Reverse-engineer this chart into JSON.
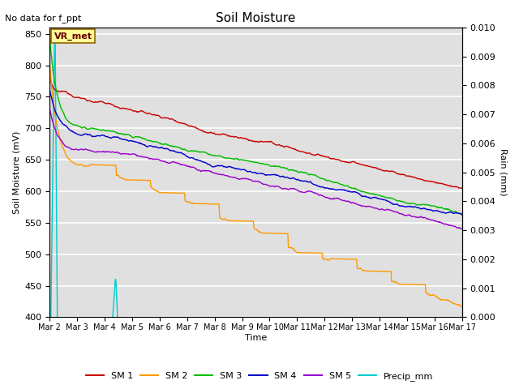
{
  "title": "Soil Moisture",
  "top_left_text": "No data for f_ppt",
  "xlabel": "Time",
  "ylabel_left": "Soil Moisture (mV)",
  "ylabel_right": "Rain (mm)",
  "ylim_left": [
    400,
    860
  ],
  "ylim_right": [
    0.0,
    0.01
  ],
  "background_color": "#ffffff",
  "plot_bg_color": "#e0e0e0",
  "grid_color": "#ffffff",
  "title_fontsize": 11,
  "sm1_color": "#cc0000",
  "sm2_color": "#ff9900",
  "sm3_color": "#00bb00",
  "sm4_color": "#0000cc",
  "sm5_color": "#9900cc",
  "precip_color": "#00cccc",
  "x_tick_labels": [
    "Mar 2",
    "Mar 3",
    "Mar 4",
    "Mar 5",
    "Mar 6",
    "Mar 7",
    "Mar 8",
    "Mar 9",
    "Mar 10",
    "Mar 11",
    "Mar 12",
    "Mar 13",
    "Mar 14",
    "Mar 15",
    "Mar 16",
    "Mar 17"
  ],
  "n_days": 16
}
